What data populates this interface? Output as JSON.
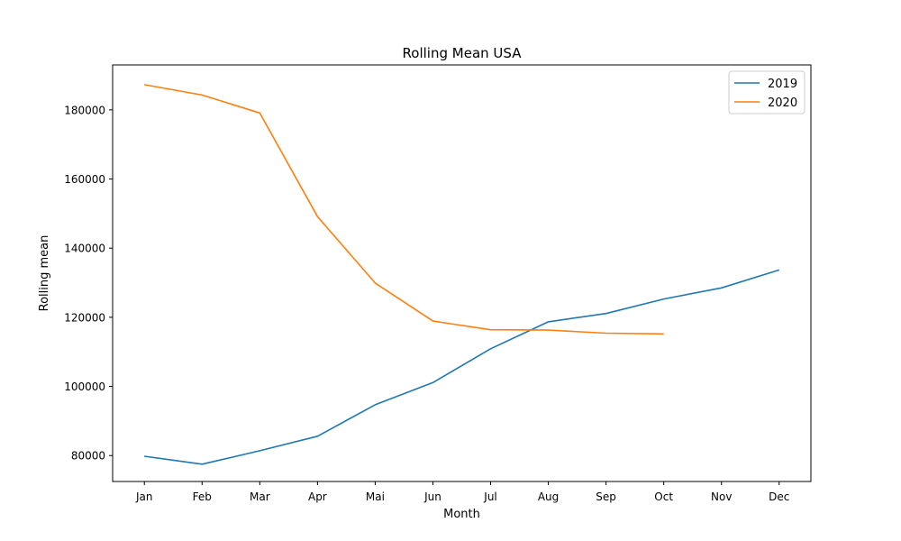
{
  "chart_data": {
    "type": "line",
    "title": "Rolling Mean USA",
    "xlabel": "Month",
    "ylabel": "Rolling mean",
    "categories": [
      "Jan",
      "Feb",
      "Mar",
      "Apr",
      "Mai",
      "Jun",
      "Jul",
      "Aug",
      "Sep",
      "Oct",
      "Nov",
      "Dec"
    ],
    "ylim": [
      72500,
      193000
    ],
    "yticks": [
      80000,
      100000,
      120000,
      140000,
      160000,
      180000
    ],
    "ytick_labels": [
      "80000",
      "100000",
      "120000",
      "140000",
      "160000",
      "180000"
    ],
    "grid": false,
    "legend_position": "top-right",
    "series": [
      {
        "name": "2019",
        "color": "#1f77b4",
        "values": [
          79800,
          77500,
          81400,
          85600,
          94700,
          101100,
          110900,
          118700,
          121100,
          125300,
          128500,
          133700
        ]
      },
      {
        "name": "2020",
        "color": "#ff7f0e",
        "values": [
          187300,
          184300,
          179100,
          149100,
          129900,
          118900,
          116400,
          116300,
          115400,
          115200,
          null,
          null
        ]
      }
    ]
  }
}
